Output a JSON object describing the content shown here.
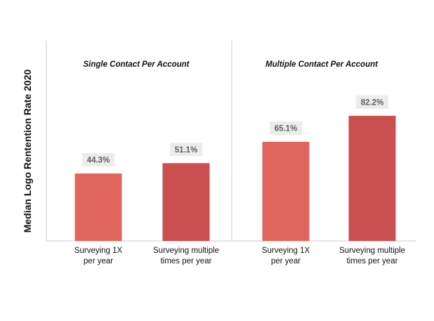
{
  "chart_data": {
    "type": "bar",
    "title": "",
    "ylabel": "Median Logo Rentention Rate 2020",
    "xlabel": "",
    "ylim": [
      0,
      100
    ],
    "grid": false,
    "groups": [
      {
        "title": "Single Contact Per Account",
        "bars": [
          {
            "label_lines": [
              "Surveying 1X",
              "per year"
            ],
            "value": 44.3,
            "value_label": "44.3%"
          },
          {
            "label_lines": [
              "Surveying multiple",
              "times per year"
            ],
            "value": 51.1,
            "value_label": "51.1%"
          }
        ]
      },
      {
        "title": "Multiple Contact Per Account",
        "bars": [
          {
            "label_lines": [
              "Surveying 1X",
              "per year"
            ],
            "value": 65.1,
            "value_label": "65.1%"
          },
          {
            "label_lines": [
              "Surveying multiple",
              "times per year"
            ],
            "value": 82.2,
            "value_label": "82.2%"
          }
        ]
      }
    ],
    "colors": {
      "once": "#e0655d",
      "multiple": "#c94f50",
      "label_bg": "#ececec",
      "label_text": "#5f5f5f",
      "axis": "#dedede"
    }
  }
}
